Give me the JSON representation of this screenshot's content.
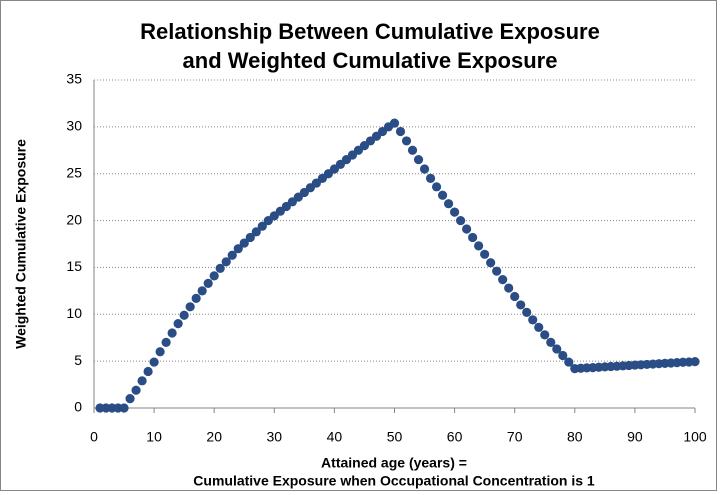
{
  "chart_data": {
    "type": "scatter",
    "title": [
      "Relationship Between Cumulative Exposure",
      "and Weighted Cumulative Exposure"
    ],
    "x_label": [
      "Attained age (years) =",
      "Cumulative Exposure when Occupational Concentration is 1"
    ],
    "y_label": "Weighted Cumulative Exposure",
    "xlim": [
      0,
      100
    ],
    "xticks": [
      0,
      10,
      20,
      30,
      40,
      50,
      60,
      70,
      80,
      90,
      100
    ],
    "ylim": [
      0,
      35
    ],
    "yticks": [
      0,
      5,
      10,
      15,
      20,
      25,
      30,
      35
    ],
    "grid": true,
    "color": "#2a4d86",
    "x": [
      1,
      2,
      3,
      4,
      5,
      6,
      7,
      8,
      9,
      10,
      11,
      12,
      13,
      14,
      15,
      16,
      17,
      18,
      19,
      20,
      21,
      22,
      23,
      24,
      25,
      26,
      27,
      28,
      29,
      30,
      31,
      32,
      33,
      34,
      35,
      36,
      37,
      38,
      39,
      40,
      41,
      42,
      43,
      44,
      45,
      46,
      47,
      48,
      49,
      50,
      51,
      52,
      53,
      54,
      55,
      56,
      57,
      58,
      59,
      60,
      61,
      62,
      63,
      64,
      65,
      66,
      67,
      68,
      69,
      70,
      71,
      72,
      73,
      74,
      75,
      76,
      77,
      78,
      79,
      80,
      81,
      82,
      83,
      84,
      85,
      86,
      87,
      88,
      89,
      90,
      91,
      92,
      93,
      94,
      95,
      96,
      97,
      98,
      99,
      100
    ],
    "values": [
      0,
      0,
      0,
      0,
      0,
      1.0,
      1.9,
      2.9,
      3.9,
      4.9,
      6.0,
      7.0,
      8.0,
      9.0,
      9.9,
      10.8,
      11.7,
      12.5,
      13.3,
      14.1,
      14.9,
      15.6,
      16.3,
      17.0,
      17.6,
      18.2,
      18.8,
      19.4,
      20.0,
      20.5,
      21.0,
      21.5,
      22.0,
      22.5,
      23.0,
      23.5,
      24.0,
      24.5,
      25.0,
      25.5,
      26.0,
      26.5,
      27.0,
      27.5,
      28.0,
      28.5,
      29.0,
      29.5,
      30.0,
      30.4,
      29.5,
      28.5,
      27.5,
      26.5,
      25.5,
      24.5,
      23.6,
      22.7,
      21.8,
      20.9,
      20.0,
      19.1,
      18.2,
      17.3,
      16.4,
      15.5,
      14.6,
      13.7,
      12.8,
      11.9,
      11.0,
      10.2,
      9.4,
      8.6,
      7.8,
      7.0,
      6.3,
      5.6,
      4.9,
      4.2,
      4.24,
      4.28,
      4.31,
      4.35,
      4.39,
      4.43,
      4.46,
      4.5,
      4.54,
      4.58,
      4.61,
      4.65,
      4.69,
      4.73,
      4.76,
      4.8,
      4.84,
      4.88,
      4.91,
      4.95
    ]
  }
}
